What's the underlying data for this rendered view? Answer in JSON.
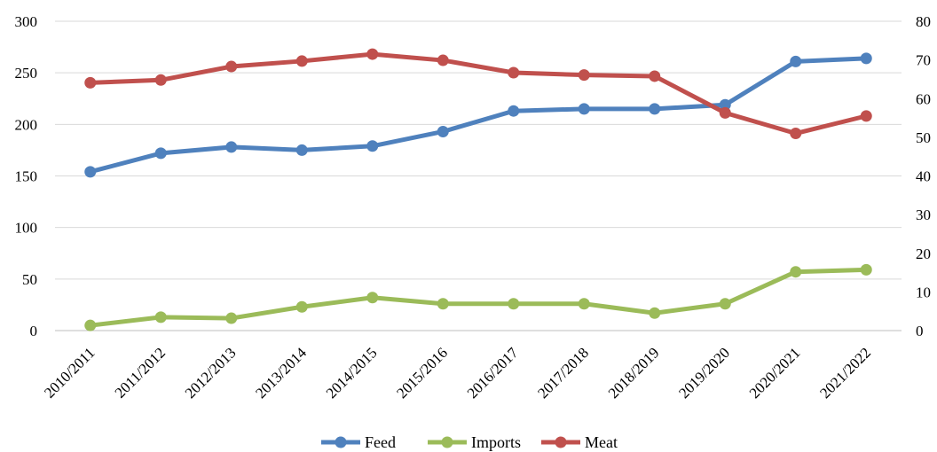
{
  "chart_data": {
    "type": "line",
    "categories": [
      "2010/2011",
      "2011/2012",
      "2012/2013",
      "2013/2014",
      "2014/2015",
      "2015/2016",
      "2016/2017",
      "2017/2018",
      "2018/2019",
      "2019/2020",
      "2020/2021",
      "2021/2022"
    ],
    "series": [
      {
        "name": "Feed",
        "axis": "left",
        "color": "#4f81bd",
        "values": [
          154,
          172,
          178,
          175,
          179,
          193,
          213,
          215,
          215,
          219,
          261,
          264
        ]
      },
      {
        "name": "Imports",
        "axis": "left",
        "color": "#9bbb59",
        "values": [
          5,
          13,
          12,
          23,
          32,
          26,
          26,
          26,
          17,
          26,
          57,
          59
        ]
      },
      {
        "name": "Meat",
        "axis": "right",
        "color": "#c0504d",
        "values": [
          64.1,
          64.8,
          68.3,
          69.7,
          71.5,
          69.9,
          66.7,
          66.1,
          65.8,
          56.3,
          51.0,
          55.5
        ]
      }
    ],
    "y_left": {
      "range": [
        0,
        300
      ],
      "ticks": [
        "0",
        "50",
        "100",
        "150",
        "200",
        "250",
        "300"
      ]
    },
    "y_right": {
      "range": [
        0,
        80
      ],
      "ticks": [
        "0",
        "10",
        "20",
        "30",
        "40",
        "50",
        "60",
        "70",
        "80"
      ]
    },
    "title": "",
    "xlabel": "",
    "ylabel": "",
    "grid": "horizontal",
    "legend_position": "bottom"
  }
}
